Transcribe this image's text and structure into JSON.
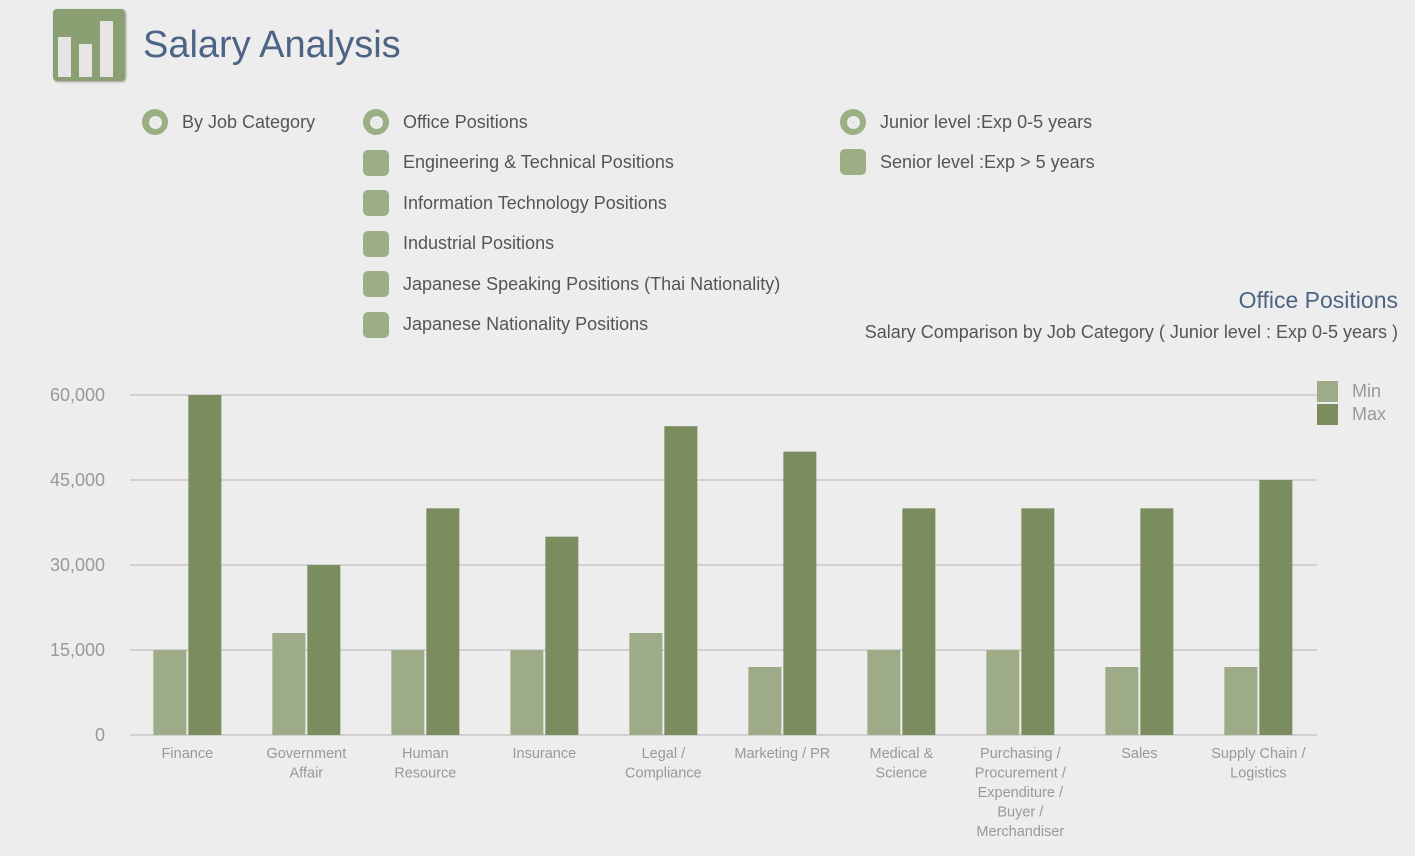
{
  "header": {
    "title": "Salary Analysis"
  },
  "filters": {
    "view": [
      {
        "label": "By Job Category",
        "selected": true
      }
    ],
    "categories": [
      {
        "label": "Office Positions",
        "selected": true
      },
      {
        "label": "Engineering & Technical Positions",
        "selected": false
      },
      {
        "label": "Information Technology Positions",
        "selected": false
      },
      {
        "label": "Industrial Positions",
        "selected": false
      },
      {
        "label": "Japanese Speaking Positions (Thai Nationality)",
        "selected": false
      },
      {
        "label": "Japanese Nationality Positions",
        "selected": false
      }
    ],
    "levels": [
      {
        "label": "Junior level :Exp 0-5 years",
        "selected": true
      },
      {
        "label": "Senior level :Exp > 5 years",
        "selected": false
      }
    ]
  },
  "chart_data": {
    "type": "bar",
    "title": "Office Positions",
    "subtitle": "Salary Comparison by Job Category ( Junior level : Exp 0-5 years )",
    "categories": [
      [
        "Finance"
      ],
      [
        "Government",
        "Affair"
      ],
      [
        "Human",
        "Resource"
      ],
      [
        "Insurance"
      ],
      [
        "Legal /",
        "Compliance"
      ],
      [
        "Marketing / PR"
      ],
      [
        "Medical &",
        "Science"
      ],
      [
        "Purchasing /",
        "Procurement /",
        "Expenditure /",
        "Buyer /",
        "Merchandiser"
      ],
      [
        "Sales"
      ],
      [
        "Supply Chain /",
        "Logistics"
      ]
    ],
    "series": [
      {
        "name": "Min",
        "color": "#9eab88",
        "values": [
          15000,
          18000,
          15000,
          15000,
          18000,
          12000,
          15000,
          15000,
          12000,
          12000
        ]
      },
      {
        "name": "Max",
        "color": "#7b8c5e",
        "values": [
          60000,
          30000,
          40000,
          35000,
          54500,
          50000,
          40000,
          40000,
          40000,
          45000
        ]
      }
    ],
    "yticks": [
      "0",
      "15,000",
      "30,000",
      "45,000",
      "60,000"
    ],
    "ylim": [
      0,
      60000
    ],
    "grid": true,
    "legend": "top-right"
  }
}
